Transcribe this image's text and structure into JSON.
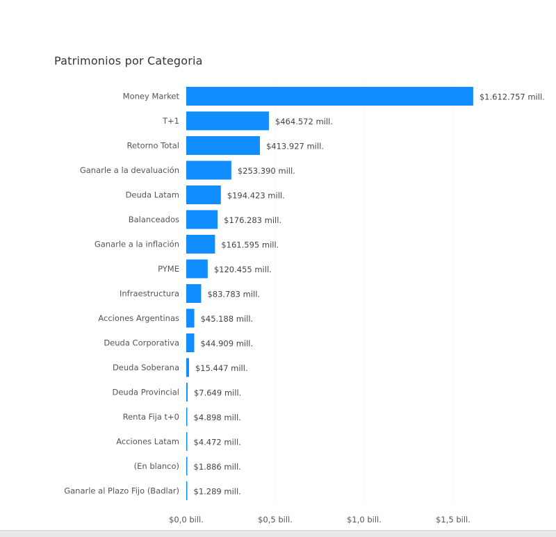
{
  "chart_data": {
    "type": "bar",
    "orientation": "horizontal",
    "title": "Patrimonios por Categoria",
    "xlabel": "",
    "ylabel": "",
    "xlim": [
      0,
      1.65
    ],
    "x_unit": "bill.",
    "grid": true,
    "x_ticks": [
      "$0,0 bill.",
      "$0,5 bill.",
      "$1,0 bill.",
      "$1,5 bill."
    ],
    "x_tick_values": [
      0,
      0.5,
      1.0,
      1.5
    ],
    "categories": [
      "Money Market",
      "T+1",
      "Retorno Total",
      "Ganarle a la devaluación",
      "Deuda Latam",
      "Balanceados",
      "Ganarle a la inflación",
      "PYME",
      "Infraestructura",
      "Acciones Argentinas",
      "Deuda Corporativa",
      "Deuda Soberana",
      "Deuda Provincial",
      "Renta Fija t+0",
      "Acciones Latam",
      "(En blanco)",
      "Ganarle al Plazo Fijo (Badlar)"
    ],
    "values_mill": [
      1612757,
      464572,
      413927,
      253390,
      194423,
      176283,
      161595,
      120455,
      83783,
      45188,
      44909,
      15447,
      7649,
      4898,
      4472,
      1886,
      1289
    ],
    "labels": [
      "$1.612.757 mill.",
      "$464.572 mill.",
      "$413.927 mill.",
      "$253.390 mill.",
      "$194.423 mill.",
      "$176.283 mill.",
      "$161.595 mill.",
      "$120.455 mill.",
      "$83.783 mill.",
      "$45.188 mill.",
      "$44.909 mill.",
      "$15.447 mill.",
      "$7.649 mill.",
      "$4.898 mill.",
      "$4.472 mill.",
      "$1.886 mill.",
      "$1.289 mill."
    ],
    "bar_color": "#118DFF"
  }
}
